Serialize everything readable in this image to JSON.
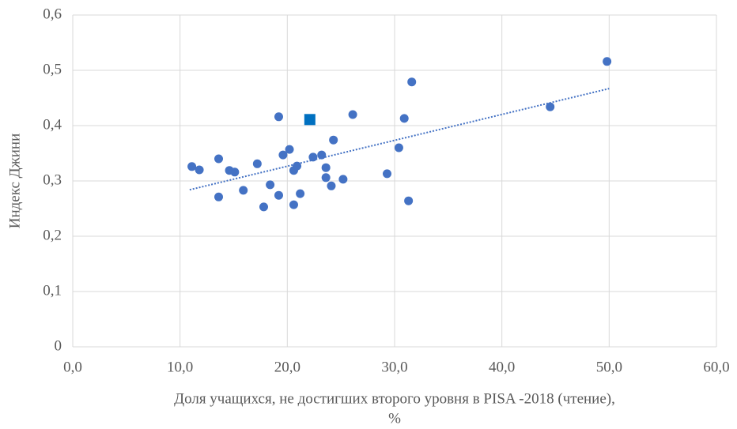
{
  "chart_data": {
    "type": "scatter",
    "ylabel": "Индекс Джини",
    "xlabel": [
      "Доля учащихся,  не достигших второго уровня в PISA -2018 (чтение),",
      "%"
    ],
    "xlim": [
      0,
      60
    ],
    "ylim": [
      0,
      0.6
    ],
    "xticks": [
      {
        "value": 0,
        "label": "0,0"
      },
      {
        "value": 10,
        "label": "10,0"
      },
      {
        "value": 20,
        "label": "20,0"
      },
      {
        "value": 30,
        "label": "30,0"
      },
      {
        "value": 40,
        "label": "40,0"
      },
      {
        "value": 50,
        "label": "50,0"
      },
      {
        "value": 60,
        "label": "60,0"
      }
    ],
    "yticks": [
      0,
      {
        "value": 0.1,
        "label": "0,1"
      },
      {
        "value": 0.2,
        "label": "0,2"
      },
      {
        "value": 0.3,
        "label": "0,3"
      },
      {
        "value": 0.4,
        "label": "0,4"
      },
      {
        "value": 0.5,
        "label": "0,5"
      },
      {
        "value": 0.6,
        "label": "0,6"
      }
    ],
    "grid": true,
    "series": [
      {
        "color": "#4472c4",
        "marker": "circle",
        "x": [
          11.1,
          11.8,
          13.6,
          13.6,
          14.6,
          15.1,
          15.9,
          17.2,
          17.8,
          18.4,
          19.2,
          19.2,
          19.6,
          20.2,
          20.6,
          20.9,
          20.6,
          21.2,
          22.4,
          23.2,
          23.6,
          23.6,
          24.1,
          24.3,
          25.2,
          26.1,
          29.3,
          30.4,
          30.9,
          31.3,
          31.6,
          44.5,
          49.8
        ],
        "values": [
          0.326,
          0.32,
          0.34,
          0.271,
          0.319,
          0.316,
          0.283,
          0.331,
          0.253,
          0.293,
          0.416,
          0.274,
          0.347,
          0.357,
          0.319,
          0.327,
          0.257,
          0.277,
          0.343,
          0.347,
          0.324,
          0.306,
          0.291,
          0.374,
          0.303,
          0.42,
          0.313,
          0.36,
          0.413,
          0.264,
          0.479,
          0.434,
          0.516
        ]
      },
      {
        "color": "#0070c0",
        "marker": "square",
        "x": [
          22.1
        ],
        "values": [
          0.411
        ]
      },
      {
        "color": "#4472c4",
        "marker": "trendline",
        "x": [
          10.9,
          50.0
        ],
        "values": [
          0.284,
          0.467
        ]
      }
    ]
  }
}
